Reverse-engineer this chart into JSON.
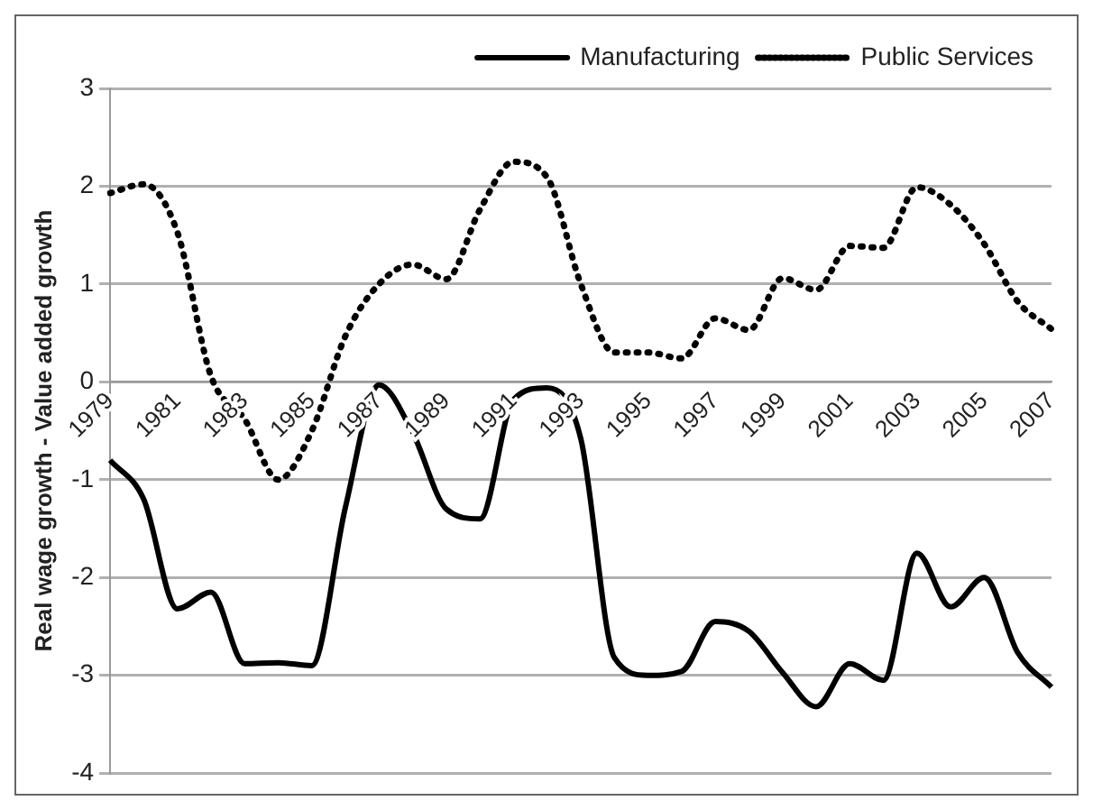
{
  "chart_data": {
    "type": "line",
    "ylabel": "Real wage growth - Value added growth",
    "categories": [
      "1979",
      null,
      "1981",
      null,
      "1983",
      null,
      "1985",
      null,
      "1987",
      null,
      "1989",
      null,
      "1991",
      null,
      "1993",
      null,
      "1995",
      null,
      "1997",
      null,
      "1999",
      null,
      "2001",
      null,
      "2003",
      null,
      "2005",
      null,
      "2007"
    ],
    "series": [
      {
        "name": "Manufacturing",
        "color": "#000000",
        "line_style": "solid",
        "values": [
          -0.8,
          -1.2,
          -2.32,
          -2.15,
          -2.88,
          -2.87,
          -2.9,
          -1.28,
          -0.03,
          -0.52,
          -1.3,
          -1.4,
          -0.18,
          -0.06,
          -0.58,
          -2.82,
          -3.0,
          -2.96,
          -2.45,
          -2.55,
          -2.97,
          -3.32,
          -2.88,
          -3.05,
          -1.75,
          -2.3,
          -2.0,
          -2.77,
          -3.12
        ]
      },
      {
        "name": "Public Services",
        "color": "#000000",
        "line_style": "dotted",
        "values": [
          1.93,
          2.02,
          1.53,
          0.06,
          -0.38,
          -1.0,
          -0.5,
          0.47,
          1.0,
          1.2,
          1.05,
          1.76,
          2.25,
          2.09,
          1.0,
          0.3,
          0.3,
          0.24,
          0.65,
          0.53,
          1.06,
          0.94,
          1.39,
          1.37,
          1.99,
          1.81,
          1.41,
          0.82,
          0.54
        ]
      }
    ],
    "ylim": [
      -4,
      3
    ],
    "yticks": [
      -4,
      -3,
      -2,
      -1,
      0,
      1,
      2,
      3
    ],
    "grid": "y",
    "legend": "top right",
    "marker": "none"
  }
}
